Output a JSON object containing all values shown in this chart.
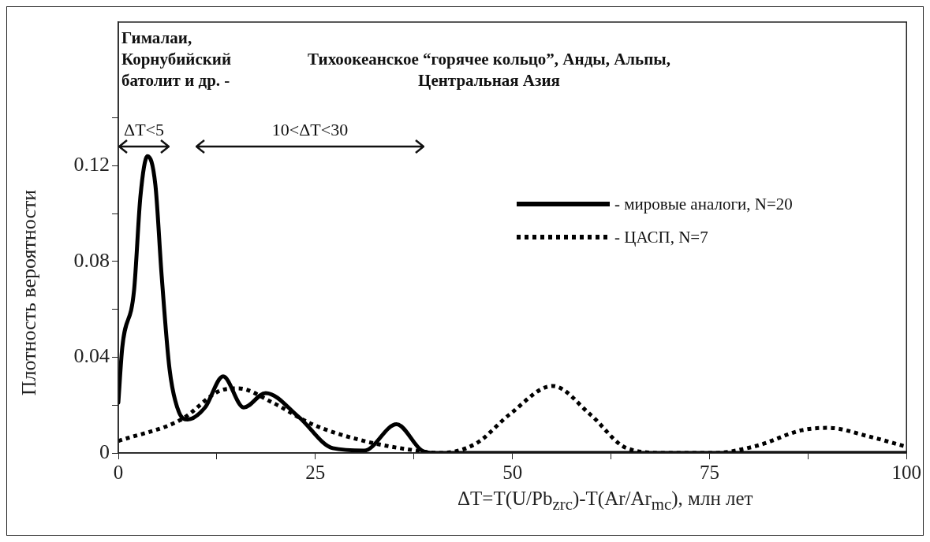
{
  "chart_data": {
    "type": "line",
    "xlabel": "ΔT=T(U/Pb$_{zrc}$)-T(Ar/Ar$_{mc}$), млн лет",
    "ylabel": "Плотность вероятности",
    "xlim": [
      0,
      100
    ],
    "xticks": [
      0,
      {
        "value": 12.5,
        "label": null
      },
      25,
      {
        "value": 37.5,
        "label": null
      },
      50,
      {
        "value": 62.5,
        "label": null
      },
      75,
      {
        "value": 87.5,
        "label": null
      },
      100
    ],
    "ylim": [
      0,
      0.18
    ],
    "yticks": [
      0,
      {
        "value": 0.02,
        "label": null
      },
      0.04,
      {
        "value": 0.06,
        "label": null
      },
      0.08,
      {
        "value": 0.1,
        "label": null
      },
      0.12,
      {
        "value": 0.14,
        "label": null
      }
    ],
    "grid": false,
    "legend": "right",
    "marker": "none",
    "series": [
      {
        "name": "- мировые аналоги, N=20",
        "color": "#000000",
        "line_style": "solid",
        "x": [
          0,
          0.5,
          2,
          2.8,
          3.7,
          4.7,
          5.5,
          6.5,
          7.7,
          8.8,
          11,
          13.3,
          15.9,
          18.7,
          22.9,
          27.2,
          31.2,
          35.3,
          38.5,
          40,
          60,
          80,
          100
        ],
        "values": [
          0.021,
          0.044,
          0.068,
          0.107,
          0.124,
          0.112,
          0.074,
          0.035,
          0.017,
          0.014,
          0.019,
          0.032,
          0.019,
          0.025,
          0.015,
          0.002,
          0.001,
          0.012,
          0.001,
          0,
          0,
          0,
          0
        ]
      },
      {
        "name": "- ЦАСП, N=7",
        "color": "#000000",
        "line_style": "dotted",
        "x": [
          0,
          8,
          12.9,
          15.2,
          19.6,
          24.6,
          31.2,
          37.8,
          40.8,
          45.4,
          49.6,
          55.1,
          59.9,
          64.5,
          69.5,
          75.4,
          81,
          86.7,
          90.1,
          95.1,
          100
        ],
        "values": [
          0.005,
          0.014,
          0.026,
          0.027,
          0.021,
          0.012,
          0.005,
          0.001,
          0,
          0.004,
          0.016,
          0.028,
          0.016,
          0.002,
          0,
          0,
          0.003,
          0.0095,
          0.0105,
          0.007,
          0.0026
        ]
      }
    ],
    "annotations": [
      "Гималаи,\nКорнубийский\nбатолит и др. -",
      "Тихоокеанское “горячее кольцо”, Анды, Альпы,\nЦентральная Азия",
      "ΔT<5",
      "10<ΔT<30"
    ]
  }
}
